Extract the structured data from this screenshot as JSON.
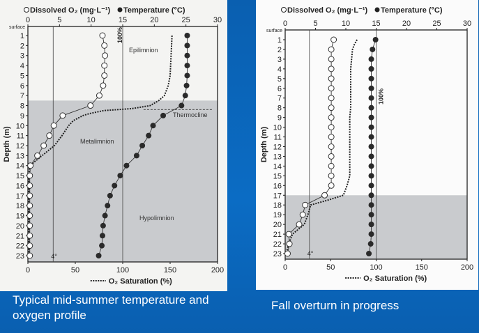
{
  "captions": [
    "Typical mid-summer temperature and oxygen profile",
    "Fall overturn in progress"
  ],
  "chart_data": [
    {
      "type": "line",
      "legend": {
        "do": "Dissolved O₂ (mg·L⁻¹)",
        "temp": "Temperature (°C)",
        "sat": "O₂ Saturation (%)"
      },
      "ylabel": "Depth (m)",
      "top_axis_ticks": [
        0,
        5,
        10,
        15,
        20,
        25,
        30
      ],
      "bottom_axis_ticks": [
        0,
        50,
        100,
        150,
        200
      ],
      "y_ticks_label_surface": "surface",
      "ylim": [
        0,
        23
      ],
      "top_xlim": [
        0,
        30
      ],
      "bottom_xlim": [
        0,
        200
      ],
      "depth": [
        1,
        2,
        3,
        4,
        5,
        6,
        7,
        8,
        9,
        10,
        11,
        12,
        13,
        14,
        15,
        16,
        17,
        18,
        19,
        20,
        21,
        22,
        23
      ],
      "dissolved_o2": [
        11.8,
        12.1,
        12.2,
        12.1,
        12.1,
        11.9,
        11.3,
        9.9,
        5.5,
        4.1,
        3.4,
        2.5,
        1.5,
        0.4,
        0.3,
        0.3,
        0.3,
        0.3,
        0.3,
        0.3,
        0.3,
        0.3,
        0.3
      ],
      "temperature": [
        25.2,
        25.2,
        25.2,
        25.2,
        25.2,
        25.1,
        24.9,
        24.3,
        21.4,
        19.8,
        19.1,
        18.1,
        17.2,
        15.6,
        14.6,
        13.7,
        13.0,
        12.6,
        12.2,
        11.9,
        11.8,
        11.7,
        11.2
      ],
      "saturation_depth": [
        1,
        3,
        5,
        6,
        7,
        7.5,
        8,
        8.3,
        8.5,
        8.8,
        9,
        9.5,
        10,
        11,
        12,
        13,
        14,
        15,
        23
      ],
      "saturation": [
        152,
        151,
        150,
        148,
        144,
        138,
        129,
        110,
        80,
        65,
        58,
        48,
        43,
        36,
        28,
        15,
        2,
        1,
        1
      ],
      "ref_lines": {
        "temp_4c": "4°",
        "sat_100": "100%",
        "thermocline_depth": 8.4
      },
      "annotations": [
        "Epilimnion",
        "Thermocline",
        "Metalimnion",
        "Hypolimnion"
      ]
    },
    {
      "type": "line",
      "legend": {
        "do": "Dissolved O₂ (mg·L⁻¹)",
        "temp": "Temperature (°C)",
        "sat": "O₂ Saturation (%)"
      },
      "ylabel": "Depth (m)",
      "top_axis_ticks": [
        0,
        5,
        10,
        15,
        20,
        25,
        30
      ],
      "bottom_axis_ticks": [
        0,
        50,
        100,
        150,
        200
      ],
      "y_ticks_label_surface": "surface",
      "ylim": [
        0,
        23
      ],
      "top_xlim": [
        0,
        30
      ],
      "bottom_xlim": [
        0,
        200
      ],
      "depth": [
        1,
        2,
        3,
        4,
        5,
        6,
        7,
        8,
        9,
        10,
        11,
        12,
        13,
        14,
        15,
        16,
        17,
        18,
        19,
        20,
        21,
        22,
        23
      ],
      "dissolved_o2": [
        8.0,
        7.6,
        7.6,
        7.6,
        7.6,
        7.6,
        7.6,
        7.6,
        7.6,
        7.6,
        7.6,
        7.6,
        7.6,
        7.6,
        7.6,
        7.6,
        6.5,
        3.3,
        2.9,
        2.3,
        0.6,
        0.7,
        0.4
      ],
      "temperature": [
        14.9,
        14.4,
        14.2,
        14.2,
        14.2,
        14.2,
        14.2,
        14.2,
        14.2,
        14.2,
        14.2,
        14.2,
        14.2,
        14.2,
        14.2,
        14.2,
        14.2,
        14.2,
        14.2,
        14.2,
        14.2,
        14.1,
        13.8
      ],
      "saturation_depth": [
        1,
        1.5,
        2,
        3,
        4,
        8,
        9,
        15,
        16,
        17,
        17.5,
        18,
        19,
        20,
        21,
        22,
        23
      ],
      "saturation": [
        79,
        76,
        74,
        73,
        72,
        72,
        71,
        71,
        68,
        64,
        47,
        28,
        25,
        21,
        8,
        4,
        1
      ],
      "ref_lines": {
        "temp_4c": "4°",
        "sat_100": "100%"
      },
      "annotations": []
    }
  ],
  "colors": {
    "background": "#0a64b8",
    "caption": "#ffffff",
    "filled_marker": "#2a2a2a",
    "open_marker": "#ffffff"
  }
}
